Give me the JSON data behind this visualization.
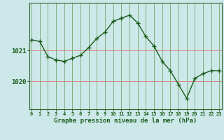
{
  "x": [
    0,
    1,
    2,
    3,
    4,
    5,
    6,
    7,
    8,
    9,
    10,
    11,
    12,
    13,
    14,
    15,
    16,
    17,
    18,
    19,
    20,
    21,
    22,
    23
  ],
  "y": [
    1021.35,
    1021.3,
    1020.8,
    1020.7,
    1020.65,
    1020.75,
    1020.85,
    1021.1,
    1021.4,
    1021.6,
    1021.95,
    1022.05,
    1022.15,
    1021.9,
    1021.45,
    1021.15,
    1020.65,
    1020.35,
    1019.9,
    1019.45,
    1020.1,
    1020.25,
    1020.35,
    1020.35
  ],
  "xlabel": "Graphe pression niveau de la mer (hPa)",
  "ylim_min": 1019.1,
  "ylim_max": 1022.55,
  "yticks": [
    1020,
    1021
  ],
  "bg_color": "#cce8e8",
  "grid_color_h": "#e08080",
  "grid_color_v": "#80b080",
  "line_color": "#1a5c1a",
  "marker_color": "#1a5c1a",
  "axis_color": "#336633",
  "text_color": "#1a5c1a"
}
